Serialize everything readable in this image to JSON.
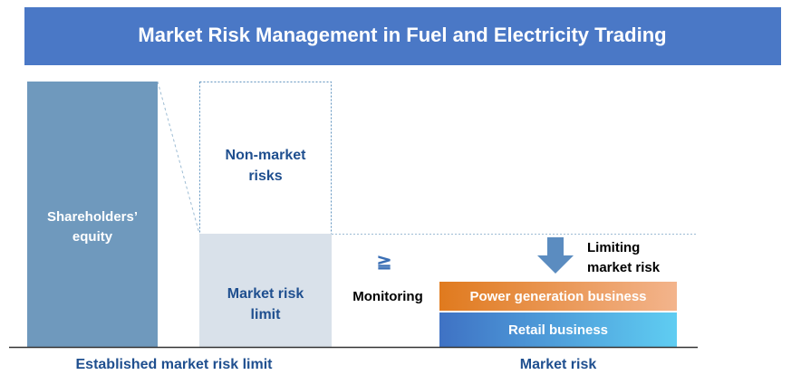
{
  "header": {
    "title": "Market Risk Management in Fuel and Electricity Trading"
  },
  "left_group": {
    "shareholders_equity": {
      "lines": [
        "Shareholders’",
        "equity"
      ]
    },
    "non_market_risks": {
      "lines": [
        "Non-market",
        "risks"
      ]
    },
    "market_risk_limit": {
      "lines": [
        "Market risk",
        "limit"
      ]
    },
    "caption": "Established market risk limit"
  },
  "monitoring": {
    "symbol": "≧",
    "label": "Monitoring"
  },
  "right_group": {
    "limiting": {
      "lines": [
        "Limiting",
        "market risk"
      ]
    },
    "power_generation": "Power generation business",
    "retail": "Retail business",
    "caption": "Market risk"
  }
}
